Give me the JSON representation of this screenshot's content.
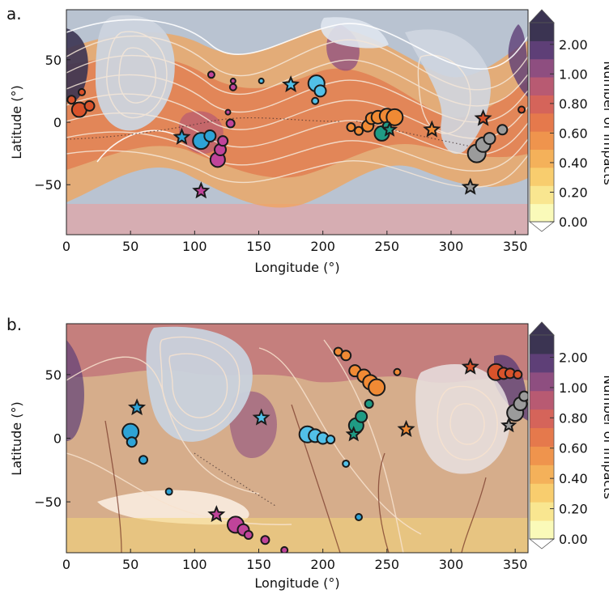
{
  "panels": [
    {
      "label": "a.",
      "chart_data": {
        "type": "heatmap",
        "xlabel": "Longitude (°)",
        "ylabel": "Latitude (°)",
        "xlim": [
          0,
          360
        ],
        "ylim": [
          -90,
          90
        ],
        "x_ticks": [
          "0",
          "50",
          "100",
          "150",
          "200",
          "250",
          "300",
          "350"
        ],
        "y_ticks": [
          "50",
          "0",
          "−50"
        ],
        "colorbar": {
          "label": "Number of Impacts",
          "ticks": [
            "2.00",
            "1.00",
            "0.80",
            "0.60",
            "0.40",
            "0.20",
            "0.00"
          ]
        },
        "points": [
          {
            "lon": 10,
            "lat": 10,
            "size": 9,
            "color": "#d9532b",
            "shape": "circle"
          },
          {
            "lon": 18,
            "lat": 13,
            "size": 6,
            "color": "#d9532b",
            "shape": "circle"
          },
          {
            "lon": 12,
            "lat": 24,
            "size": 4,
            "color": "#d9532b",
            "shape": "circle"
          },
          {
            "lon": 4,
            "lat": 18,
            "size": 5,
            "color": "#d9532b",
            "shape": "circle"
          },
          {
            "lon": 105,
            "lat": -15,
            "size": 10,
            "color": "#2ea3d6",
            "shape": "circle"
          },
          {
            "lon": 112,
            "lat": -11,
            "size": 7,
            "color": "#2ea3d6",
            "shape": "circle"
          },
          {
            "lon": 118,
            "lat": -30,
            "size": 9,
            "color": "#c0449a",
            "shape": "circle"
          },
          {
            "lon": 120,
            "lat": -22,
            "size": 7,
            "color": "#c0449a",
            "shape": "circle"
          },
          {
            "lon": 122,
            "lat": -15,
            "size": 6,
            "color": "#c0449a",
            "shape": "circle"
          },
          {
            "lon": 128,
            "lat": -1,
            "size": 5,
            "color": "#c0449a",
            "shape": "circle"
          },
          {
            "lon": 126,
            "lat": 8,
            "size": 3,
            "color": "#c0449a",
            "shape": "circle"
          },
          {
            "lon": 130,
            "lat": 28,
            "size": 4,
            "color": "#c0449a",
            "shape": "circle"
          },
          {
            "lon": 130,
            "lat": 33,
            "size": 3,
            "color": "#c0449a",
            "shape": "circle"
          },
          {
            "lon": 113,
            "lat": 38,
            "size": 4,
            "color": "#c0449a",
            "shape": "circle"
          },
          {
            "lon": 152,
            "lat": 33,
            "size": 3,
            "color": "#52c0e8",
            "shape": "circle"
          },
          {
            "lon": 195,
            "lat": 31,
            "size": 10,
            "color": "#52c0e8",
            "shape": "circle"
          },
          {
            "lon": 198,
            "lat": 25,
            "size": 7,
            "color": "#52c0e8",
            "shape": "circle"
          },
          {
            "lon": 194,
            "lat": 17,
            "size": 4,
            "color": "#52c0e8",
            "shape": "circle"
          },
          {
            "lon": 222,
            "lat": -4,
            "size": 5,
            "color": "#f08a34",
            "shape": "circle"
          },
          {
            "lon": 228,
            "lat": -7,
            "size": 5,
            "color": "#f08a34",
            "shape": "circle"
          },
          {
            "lon": 235,
            "lat": -3,
            "size": 7,
            "color": "#f08a34",
            "shape": "circle"
          },
          {
            "lon": 238,
            "lat": 3,
            "size": 7,
            "color": "#f08a34",
            "shape": "circle"
          },
          {
            "lon": 243,
            "lat": 4,
            "size": 8,
            "color": "#f08a34",
            "shape": "circle"
          },
          {
            "lon": 250,
            "lat": 5,
            "size": 9,
            "color": "#f08a34",
            "shape": "circle"
          },
          {
            "lon": 256,
            "lat": 4,
            "size": 10,
            "color": "#f08a34",
            "shape": "circle"
          },
          {
            "lon": 246,
            "lat": -9,
            "size": 9,
            "color": "#1f9b84",
            "shape": "circle"
          },
          {
            "lon": 250,
            "lat": -3,
            "size": 5,
            "color": "#1f9b84",
            "shape": "circle"
          },
          {
            "lon": 320,
            "lat": -25,
            "size": 11,
            "color": "#9b9b9b",
            "shape": "circle"
          },
          {
            "lon": 325,
            "lat": -18,
            "size": 9,
            "color": "#9b9b9b",
            "shape": "circle"
          },
          {
            "lon": 330,
            "lat": -13,
            "size": 7,
            "color": "#9b9b9b",
            "shape": "circle"
          },
          {
            "lon": 340,
            "lat": -6,
            "size": 6,
            "color": "#9b9b9b",
            "shape": "circle"
          },
          {
            "lon": 355,
            "lat": 10,
            "size": 4,
            "color": "#d9532b",
            "shape": "circle"
          },
          {
            "lon": 90,
            "lat": -12,
            "size": 9,
            "color": "#2ea3d6",
            "shape": "star"
          },
          {
            "lon": 105,
            "lat": -55,
            "size": 9,
            "color": "#c0449a",
            "shape": "star"
          },
          {
            "lon": 175,
            "lat": 30,
            "size": 9,
            "color": "#52c0e8",
            "shape": "star"
          },
          {
            "lon": 252,
            "lat": -6,
            "size": 8,
            "color": "#1f9b84",
            "shape": "star"
          },
          {
            "lon": 285,
            "lat": -6,
            "size": 9,
            "color": "#f08a34",
            "shape": "star"
          },
          {
            "lon": 315,
            "lat": -52,
            "size": 9,
            "color": "#9b9b9b",
            "shape": "star"
          },
          {
            "lon": 325,
            "lat": 3,
            "size": 9,
            "color": "#d9532b",
            "shape": "star"
          }
        ]
      }
    },
    {
      "label": "b.",
      "chart_data": {
        "type": "heatmap",
        "xlabel": "Longitude (°)",
        "ylabel": "Latitude (°)",
        "xlim": [
          0,
          360
        ],
        "ylim": [
          -90,
          90
        ],
        "x_ticks": [
          "0",
          "50",
          "100",
          "150",
          "200",
          "250",
          "300",
          "350"
        ],
        "y_ticks": [
          "50",
          "0",
          "−50"
        ],
        "colorbar": {
          "label": "Number of Impacts",
          "ticks": [
            "2.00",
            "1.00",
            "0.80",
            "0.60",
            "0.40",
            "0.20",
            "0.00"
          ]
        },
        "points": [
          {
            "lon": 50,
            "lat": 5,
            "size": 10,
            "color": "#2ea3d6",
            "shape": "circle"
          },
          {
            "lon": 51,
            "lat": -3,
            "size": 6,
            "color": "#2ea3d6",
            "shape": "circle"
          },
          {
            "lon": 60,
            "lat": -17,
            "size": 5,
            "color": "#2ea3d6",
            "shape": "circle"
          },
          {
            "lon": 80,
            "lat": -42,
            "size": 4,
            "color": "#2ea3d6",
            "shape": "circle"
          },
          {
            "lon": 132,
            "lat": -68,
            "size": 10,
            "color": "#c0449a",
            "shape": "circle"
          },
          {
            "lon": 138,
            "lat": -72,
            "size": 7,
            "color": "#c0449a",
            "shape": "circle"
          },
          {
            "lon": 142,
            "lat": -76,
            "size": 5,
            "color": "#c0449a",
            "shape": "circle"
          },
          {
            "lon": 155,
            "lat": -80,
            "size": 5,
            "color": "#c0449a",
            "shape": "circle"
          },
          {
            "lon": 170,
            "lat": -88,
            "size": 4,
            "color": "#c0449a",
            "shape": "circle"
          },
          {
            "lon": 188,
            "lat": 3,
            "size": 10,
            "color": "#52c0e8",
            "shape": "circle"
          },
          {
            "lon": 194,
            "lat": 2,
            "size": 8,
            "color": "#52c0e8",
            "shape": "circle"
          },
          {
            "lon": 200,
            "lat": 0,
            "size": 7,
            "color": "#52c0e8",
            "shape": "circle"
          },
          {
            "lon": 206,
            "lat": -1,
            "size": 5,
            "color": "#52c0e8",
            "shape": "circle"
          },
          {
            "lon": 218,
            "lat": -20,
            "size": 4,
            "color": "#52c0e8",
            "shape": "circle"
          },
          {
            "lon": 228,
            "lat": -62,
            "size": 4,
            "color": "#2ea3d6",
            "shape": "circle"
          },
          {
            "lon": 226,
            "lat": 10,
            "size": 9,
            "color": "#1f9b84",
            "shape": "circle"
          },
          {
            "lon": 230,
            "lat": 17,
            "size": 7,
            "color": "#1f9b84",
            "shape": "circle"
          },
          {
            "lon": 236,
            "lat": 27,
            "size": 5,
            "color": "#1f9b84",
            "shape": "circle"
          },
          {
            "lon": 240,
            "lat": 38,
            "size": 4,
            "color": "#1f9b84",
            "shape": "circle"
          },
          {
            "lon": 212,
            "lat": 68,
            "size": 5,
            "color": "#f08a34",
            "shape": "circle"
          },
          {
            "lon": 218,
            "lat": 65,
            "size": 6,
            "color": "#f08a34",
            "shape": "circle"
          },
          {
            "lon": 225,
            "lat": 53,
            "size": 7,
            "color": "#f08a34",
            "shape": "circle"
          },
          {
            "lon": 232,
            "lat": 49,
            "size": 8,
            "color": "#f08a34",
            "shape": "circle"
          },
          {
            "lon": 237,
            "lat": 44,
            "size": 9,
            "color": "#f08a34",
            "shape": "circle"
          },
          {
            "lon": 242,
            "lat": 40,
            "size": 10,
            "color": "#f08a34",
            "shape": "circle"
          },
          {
            "lon": 258,
            "lat": 52,
            "size": 4,
            "color": "#f08a34",
            "shape": "circle"
          },
          {
            "lon": 335,
            "lat": 52,
            "size": 10,
            "color": "#d9532b",
            "shape": "circle"
          },
          {
            "lon": 341,
            "lat": 51,
            "size": 7,
            "color": "#d9532b",
            "shape": "circle"
          },
          {
            "lon": 346,
            "lat": 51,
            "size": 6,
            "color": "#d9532b",
            "shape": "circle"
          },
          {
            "lon": 352,
            "lat": 50,
            "size": 5,
            "color": "#d9532b",
            "shape": "circle"
          },
          {
            "lon": 350,
            "lat": 20,
            "size": 10,
            "color": "#9b9b9b",
            "shape": "circle"
          },
          {
            "lon": 354,
            "lat": 27,
            "size": 8,
            "color": "#9b9b9b",
            "shape": "circle"
          },
          {
            "lon": 357,
            "lat": 33,
            "size": 6,
            "color": "#9b9b9b",
            "shape": "circle"
          },
          {
            "lon": 55,
            "lat": 24,
            "size": 9,
            "color": "#2ea3d6",
            "shape": "star"
          },
          {
            "lon": 152,
            "lat": 16,
            "size": 9,
            "color": "#52c0e8",
            "shape": "star"
          },
          {
            "lon": 117,
            "lat": -60,
            "size": 9,
            "color": "#c0449a",
            "shape": "star"
          },
          {
            "lon": 224,
            "lat": 3,
            "size": 8,
            "color": "#1f9b84",
            "shape": "star"
          },
          {
            "lon": 265,
            "lat": 7,
            "size": 9,
            "color": "#f08a34",
            "shape": "star"
          },
          {
            "lon": 315,
            "lat": 56,
            "size": 9,
            "color": "#d9532b",
            "shape": "star"
          },
          {
            "lon": 345,
            "lat": 10,
            "size": 8,
            "color": "#9b9b9b",
            "shape": "star"
          }
        ]
      }
    }
  ],
  "colors": {
    "plot_bg": "#b9c3d1",
    "scale": [
      "#fafab9",
      "#f9e690",
      "#f8cd6e",
      "#f4b15a",
      "#ef944d",
      "#e5794c",
      "#d5645a",
      "#b85a72",
      "#8e4e80",
      "#5e3f77",
      "#3b3452"
    ]
  }
}
